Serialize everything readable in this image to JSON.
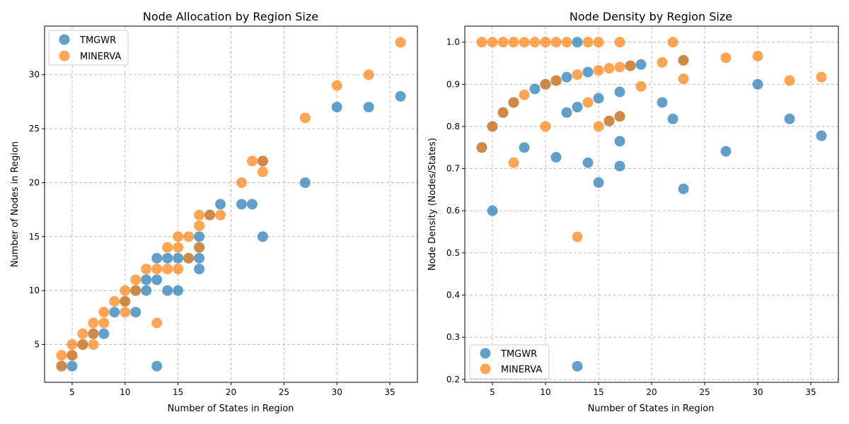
{
  "chart_data": [
    {
      "type": "scatter",
      "title": "Node Allocation by Region Size",
      "xlabel": "Number of States in Region",
      "ylabel": "Number of Nodes in Region",
      "xlim": [
        2.4,
        37.6
      ],
      "ylim": [
        1.5,
        34.5
      ],
      "xticks": [
        5,
        10,
        15,
        20,
        25,
        30,
        35
      ],
      "yticks": [
        5,
        10,
        15,
        20,
        25,
        30
      ],
      "grid": true,
      "legend_position": "upper-left",
      "series": [
        {
          "name": "TMGWR",
          "color": "#1f77b4",
          "points": [
            [
              4,
              3
            ],
            [
              5,
              3
            ],
            [
              5,
              4
            ],
            [
              6,
              5
            ],
            [
              7,
              6
            ],
            [
              8,
              6
            ],
            [
              9,
              8
            ],
            [
              10,
              9
            ],
            [
              11,
              8
            ],
            [
              11,
              10
            ],
            [
              12,
              10
            ],
            [
              12,
              11
            ],
            [
              13,
              3
            ],
            [
              13,
              11
            ],
            [
              13,
              13
            ],
            [
              14,
              10
            ],
            [
              14,
              13
            ],
            [
              15,
              10
            ],
            [
              15,
              13
            ],
            [
              16,
              13
            ],
            [
              17,
              12
            ],
            [
              17,
              13
            ],
            [
              17,
              14
            ],
            [
              17,
              15
            ],
            [
              18,
              17
            ],
            [
              19,
              18
            ],
            [
              21,
              18
            ],
            [
              22,
              18
            ],
            [
              23,
              15
            ],
            [
              23,
              22
            ],
            [
              27,
              20
            ],
            [
              30,
              27
            ],
            [
              33,
              27
            ],
            [
              36,
              28
            ]
          ]
        },
        {
          "name": "MINERVA",
          "color": "#ff7f0e",
          "points": [
            [
              4,
              3
            ],
            [
              4,
              4
            ],
            [
              5,
              4
            ],
            [
              5,
              5
            ],
            [
              6,
              5
            ],
            [
              6,
              6
            ],
            [
              7,
              5
            ],
            [
              7,
              6
            ],
            [
              7,
              7
            ],
            [
              8,
              7
            ],
            [
              8,
              8
            ],
            [
              9,
              9
            ],
            [
              10,
              8
            ],
            [
              10,
              9
            ],
            [
              10,
              10
            ],
            [
              11,
              10
            ],
            [
              11,
              11
            ],
            [
              12,
              12
            ],
            [
              13,
              7
            ],
            [
              13,
              12
            ],
            [
              14,
              12
            ],
            [
              14,
              14
            ],
            [
              15,
              12
            ],
            [
              15,
              14
            ],
            [
              15,
              15
            ],
            [
              16,
              13
            ],
            [
              16,
              15
            ],
            [
              17,
              14
            ],
            [
              17,
              16
            ],
            [
              17,
              17
            ],
            [
              18,
              17
            ],
            [
              19,
              17
            ],
            [
              21,
              20
            ],
            [
              22,
              22
            ],
            [
              23,
              21
            ],
            [
              23,
              22
            ],
            [
              27,
              26
            ],
            [
              30,
              29
            ],
            [
              33,
              30
            ],
            [
              36,
              33
            ]
          ]
        }
      ]
    },
    {
      "type": "scatter",
      "title": "Node Density by Region Size",
      "xlabel": "Number of States in Region",
      "ylabel": "Node Density (Nodes/States)",
      "xlim": [
        2.4,
        37.6
      ],
      "ylim": [
        0.193,
        1.038
      ],
      "xticks": [
        5,
        10,
        15,
        20,
        25,
        30,
        35
      ],
      "yticks": [
        0.2,
        0.3,
        0.4,
        0.5,
        0.6,
        0.7,
        0.8,
        0.9,
        1.0
      ],
      "grid": true,
      "legend_position": "lower-left",
      "series": [
        {
          "name": "TMGWR",
          "color": "#1f77b4",
          "points": [
            [
              4,
              0.75
            ],
            [
              5,
              0.6
            ],
            [
              5,
              0.8
            ],
            [
              6,
              0.833
            ],
            [
              7,
              0.857
            ],
            [
              8,
              0.75
            ],
            [
              9,
              0.889
            ],
            [
              10,
              0.9
            ],
            [
              11,
              0.727
            ],
            [
              11,
              0.909
            ],
            [
              12,
              0.833
            ],
            [
              12,
              0.917
            ],
            [
              13,
              0.231
            ],
            [
              13,
              0.846
            ],
            [
              13,
              1.0
            ],
            [
              14,
              0.714
            ],
            [
              14,
              0.929
            ],
            [
              15,
              0.667
            ],
            [
              15,
              0.867
            ],
            [
              16,
              0.813
            ],
            [
              17,
              0.706
            ],
            [
              17,
              0.765
            ],
            [
              17,
              0.824
            ],
            [
              17,
              0.882
            ],
            [
              18,
              0.944
            ],
            [
              19,
              0.947
            ],
            [
              21,
              0.857
            ],
            [
              22,
              0.818
            ],
            [
              23,
              0.652
            ],
            [
              23,
              0.957
            ],
            [
              27,
              0.741
            ],
            [
              30,
              0.9
            ],
            [
              33,
              0.818
            ],
            [
              36,
              0.778
            ]
          ]
        },
        {
          "name": "MINERVA",
          "color": "#ff7f0e",
          "points": [
            [
              4,
              0.75
            ],
            [
              4,
              1.0
            ],
            [
              5,
              0.8
            ],
            [
              5,
              1.0
            ],
            [
              6,
              0.833
            ],
            [
              6,
              1.0
            ],
            [
              7,
              0.714
            ],
            [
              7,
              0.857
            ],
            [
              7,
              1.0
            ],
            [
              8,
              0.875
            ],
            [
              8,
              1.0
            ],
            [
              9,
              1.0
            ],
            [
              10,
              0.8
            ],
            [
              10,
              0.9
            ],
            [
              10,
              1.0
            ],
            [
              11,
              0.909
            ],
            [
              11,
              1.0
            ],
            [
              12,
              1.0
            ],
            [
              13,
              0.538
            ],
            [
              13,
              0.923
            ],
            [
              14,
              0.857
            ],
            [
              14,
              1.0
            ],
            [
              15,
              0.8
            ],
            [
              15,
              0.933
            ],
            [
              15,
              1.0
            ],
            [
              16,
              0.813
            ],
            [
              16,
              0.938
            ],
            [
              17,
              0.824
            ],
            [
              17,
              0.941
            ],
            [
              17,
              1.0
            ],
            [
              18,
              0.944
            ],
            [
              19,
              0.895
            ],
            [
              21,
              0.952
            ],
            [
              22,
              1.0
            ],
            [
              23,
              0.913
            ],
            [
              23,
              0.957
            ],
            [
              27,
              0.963
            ],
            [
              30,
              0.967
            ],
            [
              33,
              0.909
            ],
            [
              36,
              0.917
            ]
          ]
        }
      ]
    }
  ]
}
